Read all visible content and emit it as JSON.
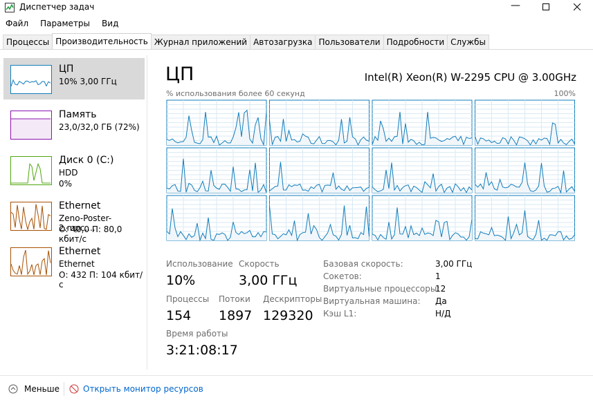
{
  "window": {
    "title": "Диспетчер задач"
  },
  "menu": [
    "Файл",
    "Параметры",
    "Вид"
  ],
  "tabs": [
    "Процессы",
    "Производительность",
    "Журнал приложений",
    "Автозагрузка",
    "Пользователи",
    "Подробности",
    "Службы"
  ],
  "sidebar": [
    {
      "name": "ЦП",
      "lines": [
        "10% 3,00 ГГц"
      ]
    },
    {
      "name": "Память",
      "lines": [
        "23,0/32,0 ГБ (72%)"
      ]
    },
    {
      "name": "Диск 0 (C:)",
      "lines": [
        "HDD",
        "0%"
      ]
    },
    {
      "name": "Ethernet",
      "lines": [
        "Zeno-Poster-2.mpc....",
        "О: 40,0 П: 80,0 кбит/с"
      ]
    },
    {
      "name": "Ethernet",
      "lines": [
        "Ethernet",
        "О: 432 П: 104 кбит/с"
      ]
    }
  ],
  "main": {
    "title": "ЦП",
    "cpu_model": "Intel(R) Xeon(R) W-2295 CPU @ 3.00GHz",
    "graph_label": "% использования более 60 секунд",
    "graph_max": "100%",
    "stats": [
      {
        "label": "Использование",
        "value": "10%"
      },
      {
        "label": "Скорость",
        "value": "3,00 ГГц"
      },
      {
        "label": "Процессы",
        "value": "154"
      },
      {
        "label": "Потоки",
        "value": "1897"
      },
      {
        "label": "Дескрипторы",
        "value": "129320"
      },
      {
        "label": "Время работы",
        "value": "3:21:08:17"
      }
    ],
    "details": [
      [
        "Базовая скорость:",
        "3,00 ГГц"
      ],
      [
        "Сокетов:",
        "1"
      ],
      [
        "Виртуальные процессоры:",
        "12"
      ],
      [
        "Виртуальная машина:",
        "Да"
      ],
      [
        "Кэш L1:",
        "Н/Д"
      ]
    ]
  },
  "footer": {
    "less": "Меньше",
    "monitor": "Открыть монитор ресурсов"
  }
}
